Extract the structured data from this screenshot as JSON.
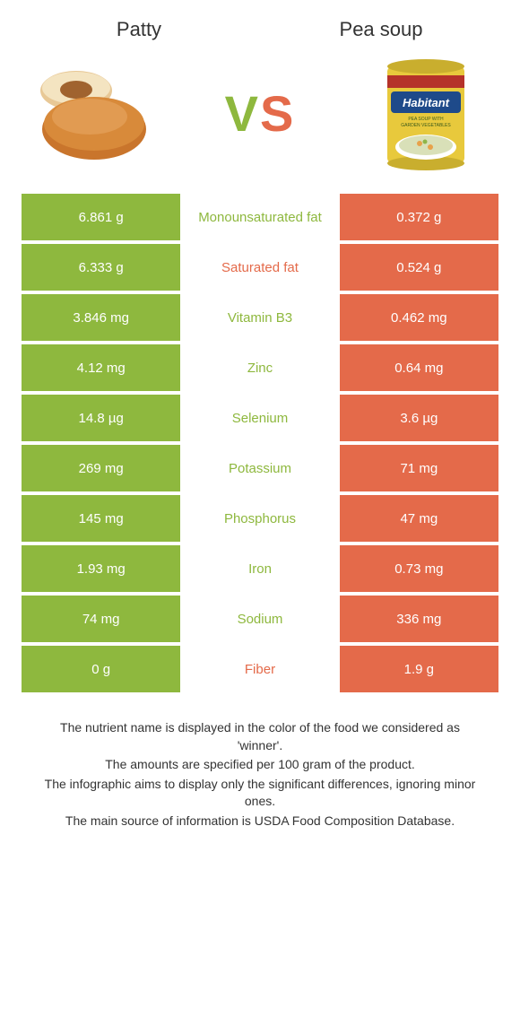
{
  "colors": {
    "green": "#8eb83e",
    "orange": "#e46a4a",
    "text": "#333333",
    "bg": "#ffffff"
  },
  "left_food": {
    "title": "Patty"
  },
  "right_food": {
    "title": "Pea soup"
  },
  "vs": {
    "v": "V",
    "s": "S"
  },
  "rows": [
    {
      "left": "6.861 g",
      "mid": "Monounsaturated fat",
      "right": "0.372 g",
      "winner": "left"
    },
    {
      "left": "6.333 g",
      "mid": "Saturated fat",
      "right": "0.524 g",
      "winner": "right"
    },
    {
      "left": "3.846 mg",
      "mid": "Vitamin B3",
      "right": "0.462 mg",
      "winner": "left"
    },
    {
      "left": "4.12 mg",
      "mid": "Zinc",
      "right": "0.64 mg",
      "winner": "left"
    },
    {
      "left": "14.8 µg",
      "mid": "Selenium",
      "right": "3.6 µg",
      "winner": "left"
    },
    {
      "left": "269 mg",
      "mid": "Potassium",
      "right": "71 mg",
      "winner": "left"
    },
    {
      "left": "145 mg",
      "mid": "Phosphorus",
      "right": "47 mg",
      "winner": "left"
    },
    {
      "left": "1.93 mg",
      "mid": "Iron",
      "right": "0.73 mg",
      "winner": "left"
    },
    {
      "left": "74 mg",
      "mid": "Sodium",
      "right": "336 mg",
      "winner": "left"
    },
    {
      "left": "0 g",
      "mid": "Fiber",
      "right": "1.9 g",
      "winner": "right"
    }
  ],
  "footer": {
    "l1": "The nutrient name is displayed in the color of the food we considered as 'winner'.",
    "l2": "The amounts are specified per 100 gram of the product.",
    "l3": "The infographic aims to display only the significant differences, ignoring minor ones.",
    "l4": "The main source of information is USDA Food Composition Database."
  }
}
